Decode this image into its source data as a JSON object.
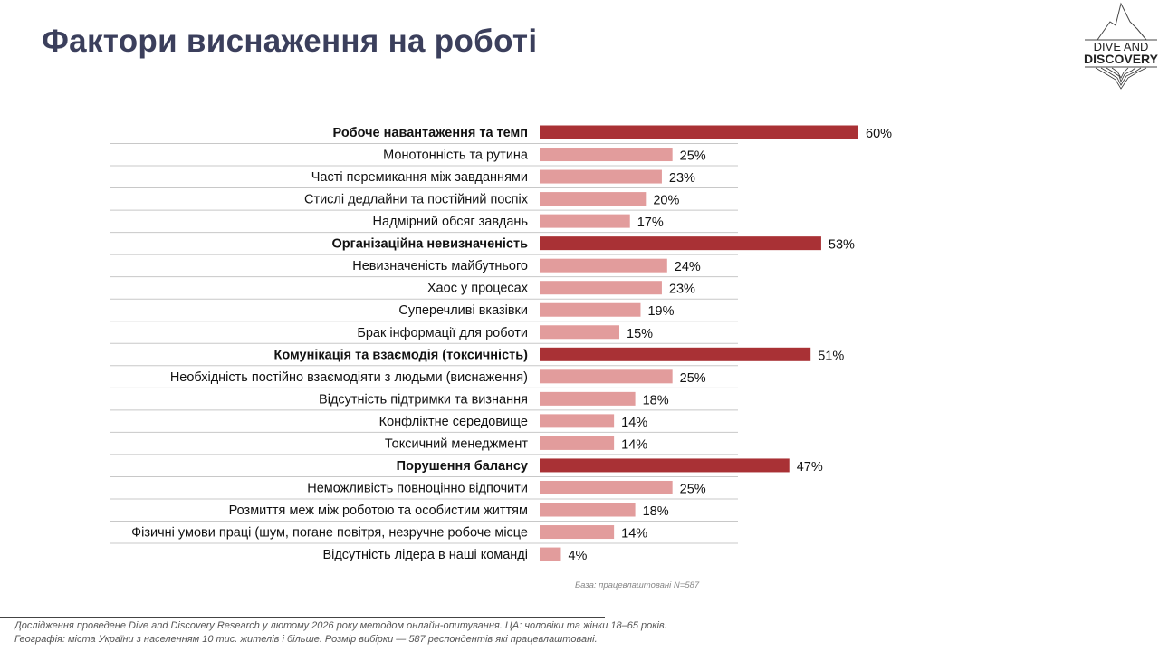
{
  "title": "Фактори виснаження на роботі",
  "logo": {
    "line1": "DIVE AND",
    "line2": "DISCOVERY"
  },
  "base_note": "База: працевлаштовані N=587",
  "footer": {
    "line1": "Дослідження проведене Dive and Discovery Research у лютому  2026 року  методом онлайн-опитування. ЦА: чоловіки та жінки 18–65 років.",
    "line2": "Географія: міста України з населенням 10 тис. жителів і більше. Розмір вибірки — 587 респондентів які працевлаштовані."
  },
  "colors": {
    "category": "#a93135",
    "item": "#e29c9c",
    "title": "#3b3f5c"
  },
  "chart_data": {
    "type": "bar",
    "orientation": "horizontal",
    "title": "Фактори виснаження на роботі",
    "unit": "%",
    "xlim": [
      0,
      60
    ],
    "rows": [
      {
        "label": "Робоче навантаження та темп",
        "value": 60,
        "level": "category"
      },
      {
        "label": "Монотонність та рутина",
        "value": 25,
        "level": "item"
      },
      {
        "label": "Часті перемикання між завданнями",
        "value": 23,
        "level": "item"
      },
      {
        "label": "Стислі дедлайни та постійний поспіх",
        "value": 20,
        "level": "item"
      },
      {
        "label": "Надмірний обсяг завдань",
        "value": 17,
        "level": "item"
      },
      {
        "label": "Організаційна невизначеність",
        "value": 53,
        "level": "category"
      },
      {
        "label": "Невизначеність майбутнього",
        "value": 24,
        "level": "item"
      },
      {
        "label": "Хаос у процесах",
        "value": 23,
        "level": "item"
      },
      {
        "label": "Суперечливі вказівки",
        "value": 19,
        "level": "item"
      },
      {
        "label": "Брак інформації для роботи",
        "value": 15,
        "level": "item"
      },
      {
        "label": "Комунікація та взаємодія (токсичність)",
        "value": 51,
        "level": "category"
      },
      {
        "label": "Необхідність постійно взаємодіяти з людьми (виснаження)",
        "value": 25,
        "level": "item"
      },
      {
        "label": "Відсутність підтримки та визнання",
        "value": 18,
        "level": "item"
      },
      {
        "label": "Конфліктне середовище",
        "value": 14,
        "level": "item"
      },
      {
        "label": "Токсичний менеджмент",
        "value": 14,
        "level": "item"
      },
      {
        "label": "Порушення балансу",
        "value": 47,
        "level": "category"
      },
      {
        "label": "Неможливість повноцінно відпочити",
        "value": 25,
        "level": "item"
      },
      {
        "label": "Розмиття меж між роботою та особистим життям",
        "value": 18,
        "level": "item"
      },
      {
        "label": "Фізичні умови праці (шум, погане повітря, незручне робоче місце",
        "value": 14,
        "level": "item"
      },
      {
        "label": "Відсутність лідера в наші команді",
        "value": 4,
        "level": "item"
      }
    ]
  }
}
